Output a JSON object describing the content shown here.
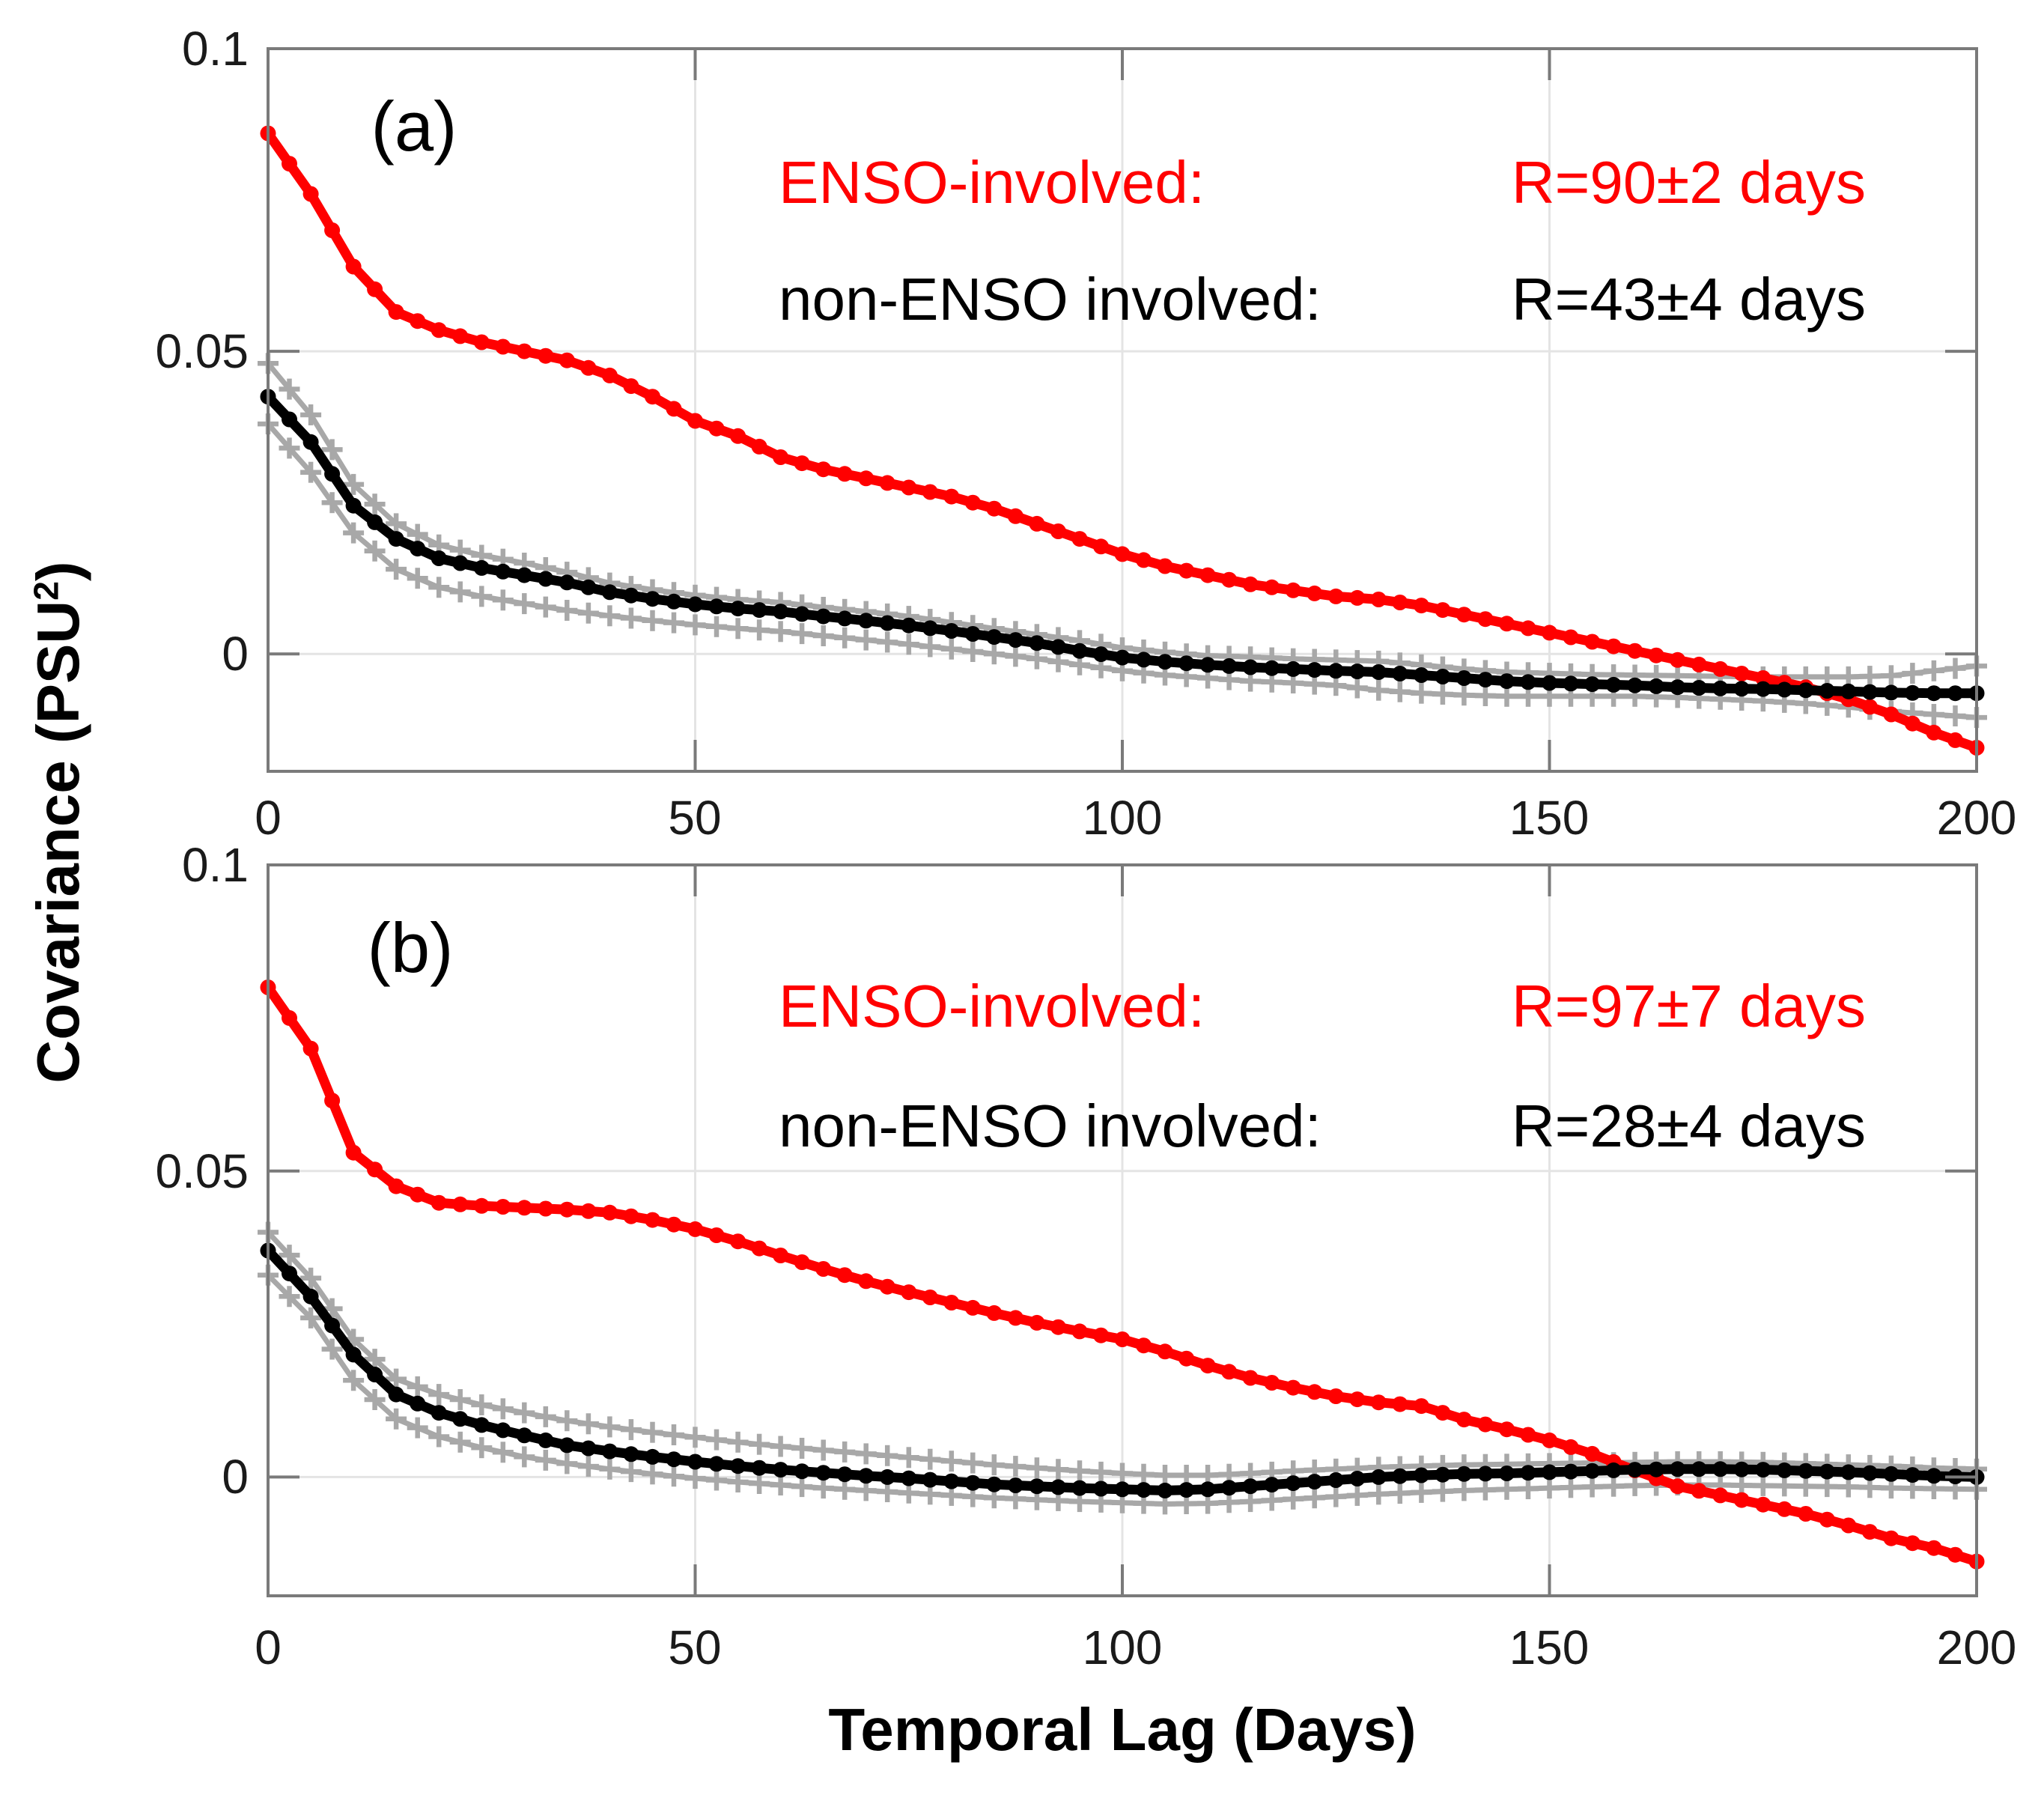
{
  "figure": {
    "y_axis_label_prefix": "Covariance (PSU",
    "y_axis_label_sup": "2",
    "y_axis_label_suffix": ")",
    "x_axis_label": "Temporal Lag (Days)",
    "colors": {
      "enso_line": "#ff0000",
      "non_enso_line": "#000000",
      "confidence_line": "#a8a8a8",
      "axis_frame": "#7a7a7a",
      "gridline": "#e4e4e4",
      "tick_label": "#1a1a1a"
    }
  },
  "chart_data": [
    {
      "type": "line",
      "panel_label": "(a)",
      "xlabel": "",
      "ylabel": "Covariance (PSU2)",
      "xlim": [
        0,
        200
      ],
      "ylim": [
        -0.0194,
        0.1
      ],
      "grid": true,
      "legend_position": "none (in-plot text annotations)",
      "x_ticks": [
        "0",
        "50",
        "100",
        "150",
        "200"
      ],
      "x_tick_values": [
        0,
        50,
        100,
        150,
        200
      ],
      "y_ticks": [
        "0.1",
        "0.05",
        "0"
      ],
      "y_tick_values": [
        0.1,
        0.05,
        0
      ],
      "annotations": [
        {
          "text_label": "ENSO-involved:",
          "text_value": "R=90±2 days",
          "color": "#ff0000"
        },
        {
          "text_label": "non-ENSO involved:",
          "text_value": "R=43±4 days",
          "color": "#000000"
        }
      ],
      "x": [
        0,
        5,
        10,
        15,
        20,
        25,
        30,
        35,
        40,
        45,
        50,
        55,
        60,
        65,
        70,
        75,
        80,
        85,
        90,
        95,
        100,
        105,
        110,
        115,
        120,
        125,
        130,
        135,
        140,
        145,
        150,
        155,
        160,
        165,
        170,
        175,
        180,
        185,
        190,
        195,
        200
      ],
      "series": [
        {
          "name": "ENSO-involved",
          "color": "#ff0000",
          "marker": "dot",
          "values": [
            0.086,
            0.076,
            0.064,
            0.0565,
            0.0535,
            0.0515,
            0.05,
            0.0485,
            0.046,
            0.0425,
            0.0385,
            0.036,
            0.0325,
            0.0305,
            0.029,
            0.0275,
            0.026,
            0.024,
            0.0215,
            0.019,
            0.0165,
            0.0145,
            0.013,
            0.0115,
            0.0105,
            0.0095,
            0.009,
            0.008,
            0.0065,
            0.005,
            0.0035,
            0.002,
            0.0005,
            -0.001,
            -0.0025,
            -0.004,
            -0.0055,
            -0.0075,
            -0.01,
            -0.013,
            -0.0155
          ]
        },
        {
          "name": "non-ENSO involved",
          "color": "#000000",
          "marker": "dot",
          "values": [
            0.0425,
            0.035,
            0.0245,
            0.019,
            0.0158,
            0.0142,
            0.013,
            0.0118,
            0.0102,
            0.0091,
            0.0082,
            0.0075,
            0.007,
            0.0062,
            0.0055,
            0.0047,
            0.0038,
            0.0028,
            0.0018,
            0.0005,
            -0.0006,
            -0.0013,
            -0.0018,
            -0.0022,
            -0.0025,
            -0.0028,
            -0.003,
            -0.0035,
            -0.004,
            -0.0045,
            -0.0048,
            -0.005,
            -0.0052,
            -0.0055,
            -0.0057,
            -0.0058,
            -0.006,
            -0.0062,
            -0.0064,
            -0.0065,
            -0.0065
          ]
        },
        {
          "name": "confidence-upper",
          "color": "#a8a8a8",
          "marker": "plus",
          "values": [
            0.048,
            0.0395,
            0.028,
            0.0215,
            0.018,
            0.0163,
            0.015,
            0.0135,
            0.0117,
            0.0106,
            0.0097,
            0.009,
            0.0085,
            0.0077,
            0.007,
            0.0062,
            0.0052,
            0.0042,
            0.0032,
            0.0022,
            0.001,
            0.0003,
            -0.0003,
            -0.0005,
            -0.0008,
            -0.001,
            -0.0012,
            -0.0018,
            -0.0025,
            -0.003,
            -0.0032,
            -0.0034,
            -0.0035,
            -0.0036,
            -0.0037,
            -0.0038,
            -0.0038,
            -0.0038,
            -0.0036,
            -0.0028,
            -0.002
          ]
        },
        {
          "name": "confidence-lower",
          "color": "#a8a8a8",
          "marker": "plus",
          "values": [
            0.038,
            0.03,
            0.02,
            0.014,
            0.011,
            0.0095,
            0.0083,
            0.0072,
            0.0063,
            0.0055,
            0.0048,
            0.0042,
            0.0037,
            0.003,
            0.0023,
            0.0016,
            0.0008,
            0.0,
            -0.0008,
            -0.0018,
            -0.0028,
            -0.0035,
            -0.004,
            -0.0045,
            -0.0048,
            -0.0052,
            -0.006,
            -0.0065,
            -0.0068,
            -0.007,
            -0.007,
            -0.007,
            -0.007,
            -0.0072,
            -0.0075,
            -0.0078,
            -0.0082,
            -0.0088,
            -0.0095,
            -0.01,
            -0.0105
          ]
        }
      ]
    },
    {
      "type": "line",
      "panel_label": "(b)",
      "xlabel": "Temporal Lag (Days)",
      "ylabel": "Covariance (PSU2)",
      "xlim": [
        0,
        200
      ],
      "ylim": [
        -0.0194,
        0.1
      ],
      "grid": true,
      "legend_position": "none (in-plot text annotations)",
      "x_ticks": [
        "0",
        "50",
        "100",
        "150",
        "200"
      ],
      "x_tick_values": [
        0,
        50,
        100,
        150,
        200
      ],
      "y_ticks": [
        "0.1",
        "0.05",
        "0"
      ],
      "y_tick_values": [
        0.1,
        0.05,
        0
      ],
      "annotations": [
        {
          "text_label": "ENSO-involved:",
          "text_value": "R=97±7 days",
          "color": "#ff0000"
        },
        {
          "text_label": "non-ENSO involved:",
          "text_value": "R=28±4 days",
          "color": "#000000"
        }
      ],
      "x": [
        0,
        5,
        10,
        15,
        20,
        25,
        30,
        35,
        40,
        45,
        50,
        55,
        60,
        65,
        70,
        75,
        80,
        85,
        90,
        95,
        100,
        105,
        110,
        115,
        120,
        125,
        130,
        135,
        140,
        145,
        150,
        155,
        160,
        165,
        170,
        175,
        180,
        185,
        190,
        195,
        200
      ],
      "series": [
        {
          "name": "ENSO-involved",
          "color": "#ff0000",
          "marker": "dot",
          "values": [
            0.08,
            0.07,
            0.053,
            0.0475,
            0.0448,
            0.0443,
            0.044,
            0.0437,
            0.0432,
            0.042,
            0.0405,
            0.0385,
            0.0362,
            0.034,
            0.032,
            0.0302,
            0.0285,
            0.0268,
            0.0252,
            0.0238,
            0.0225,
            0.0205,
            0.0182,
            0.0162,
            0.0146,
            0.0132,
            0.0122,
            0.0116,
            0.0094,
            0.0078,
            0.006,
            0.0038,
            0.0011,
            -0.0015,
            -0.003,
            -0.0045,
            -0.006,
            -0.0079,
            -0.01,
            -0.0116,
            -0.0138
          ]
        },
        {
          "name": "non-ENSO involved",
          "color": "#000000",
          "marker": "dot",
          "values": [
            0.037,
            0.0295,
            0.02,
            0.0135,
            0.0105,
            0.0085,
            0.0068,
            0.0052,
            0.0042,
            0.0033,
            0.0025,
            0.0018,
            0.0012,
            0.0007,
            0.0002,
            -0.0002,
            -0.0007,
            -0.0012,
            -0.0015,
            -0.0018,
            -0.002,
            -0.0022,
            -0.002,
            -0.0015,
            -0.001,
            -0.0005,
            0.0,
            0.0003,
            0.0005,
            0.0006,
            0.0008,
            0.001,
            0.0012,
            0.0013,
            0.0013,
            0.0012,
            0.001,
            0.0008,
            0.0005,
            0.0002,
            0.0
          ]
        },
        {
          "name": "confidence-upper",
          "color": "#a8a8a8",
          "marker": "plus",
          "values": [
            0.04,
            0.0325,
            0.0225,
            0.016,
            0.0135,
            0.0118,
            0.0105,
            0.0092,
            0.0082,
            0.0073,
            0.0065,
            0.0057,
            0.005,
            0.0044,
            0.0038,
            0.0032,
            0.0026,
            0.002,
            0.0015,
            0.001,
            0.0006,
            0.0003,
            0.0003,
            0.0006,
            0.001,
            0.0013,
            0.0016,
            0.0018,
            0.002,
            0.0021,
            0.0022,
            0.0023,
            0.0024,
            0.0025,
            0.0025,
            0.0024,
            0.0022,
            0.002,
            0.0018,
            0.0015,
            0.0013
          ]
        },
        {
          "name": "confidence-lower",
          "color": "#a8a8a8",
          "marker": "plus",
          "values": [
            0.033,
            0.026,
            0.0158,
            0.0095,
            0.0066,
            0.0048,
            0.0033,
            0.0022,
            0.0013,
            0.0005,
            -0.0002,
            -0.0008,
            -0.0013,
            -0.0018,
            -0.0022,
            -0.0026,
            -0.003,
            -0.0034,
            -0.0037,
            -0.004,
            -0.0042,
            -0.0044,
            -0.0043,
            -0.004,
            -0.0036,
            -0.0032,
            -0.0028,
            -0.0025,
            -0.0022,
            -0.002,
            -0.0018,
            -0.0016,
            -0.0014,
            -0.0013,
            -0.0013,
            -0.0014,
            -0.0015,
            -0.0016,
            -0.0018,
            -0.0019,
            -0.002
          ]
        }
      ]
    }
  ]
}
